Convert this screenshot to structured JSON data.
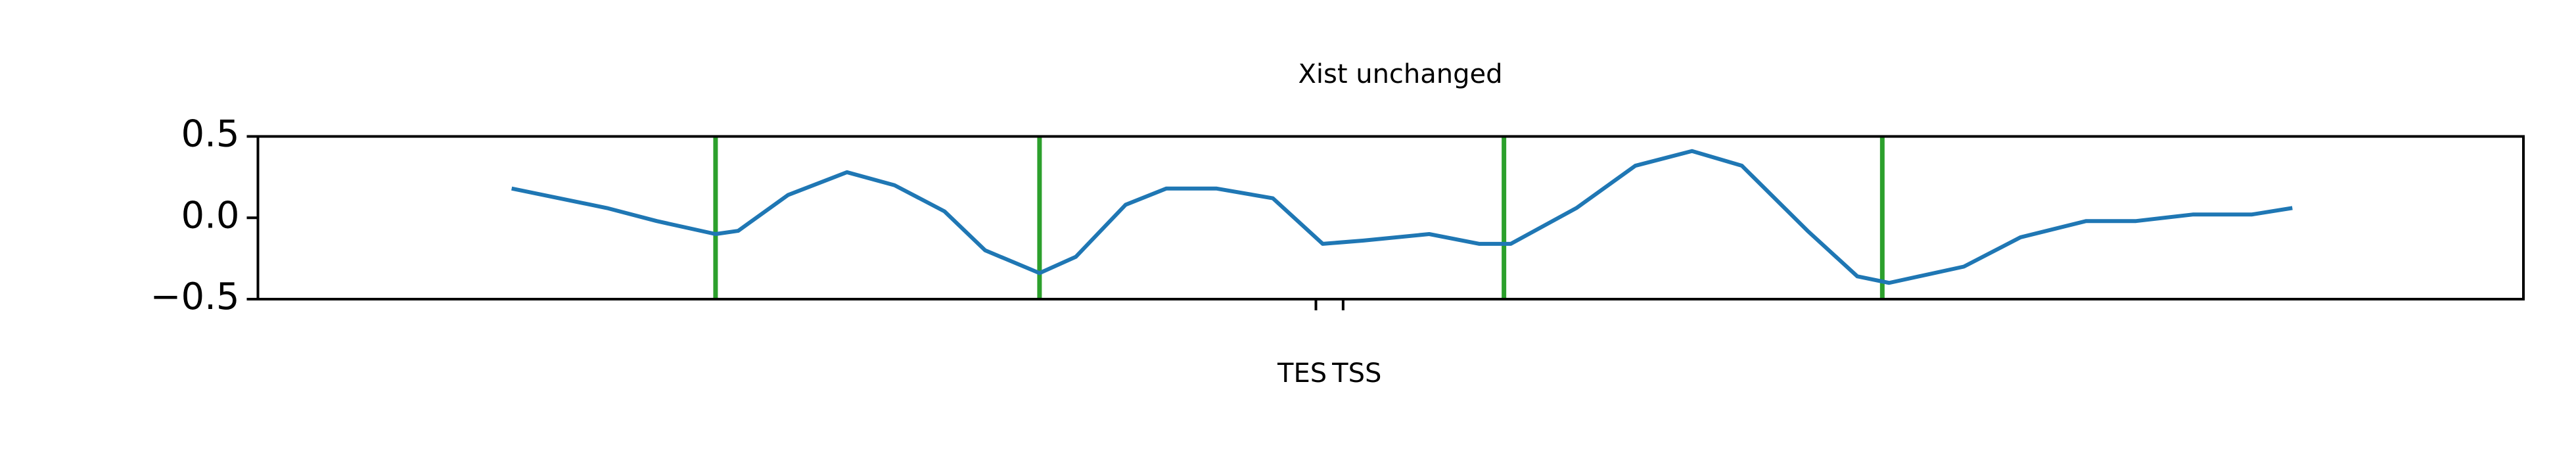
{
  "chart_data": {
    "type": "line",
    "title": "Xist unchanged",
    "x": [
      112,
      133,
      154,
      176,
      202,
      212,
      234,
      260,
      281,
      303,
      321,
      345,
      361,
      383,
      401,
      423,
      448,
      470,
      488,
      517,
      539,
      553,
      582,
      608,
      633,
      655,
      684,
      706,
      720,
      753,
      778,
      807,
      829,
      854,
      880,
      898
    ],
    "series": [
      {
        "color": "#1f77b4",
        "values": [
          0.18,
          0.12,
          0.06,
          -0.02,
          -0.1,
          -0.08,
          0.14,
          0.28,
          0.2,
          0.04,
          -0.2,
          -0.34,
          -0.24,
          0.08,
          0.18,
          0.18,
          0.12,
          -0.16,
          -0.14,
          -0.1,
          -0.16,
          -0.16,
          0.06,
          0.32,
          0.41,
          0.32,
          -0.08,
          -0.36,
          -0.4,
          -0.3,
          -0.12,
          -0.02,
          -0.02,
          0.02,
          0.02,
          0.06
        ]
      }
    ],
    "vlines": {
      "color": "#2ca02c",
      "x": [
        202,
        345,
        550,
        717
      ]
    },
    "xlim": [
      0,
      1000
    ],
    "xticks": [
      {
        "value": 467,
        "label": "TES"
      },
      {
        "value": 479,
        "label": "TSS"
      }
    ],
    "ylim": [
      -0.5,
      0.5
    ],
    "yticks": [
      {
        "value": -0.5,
        "label": "−0.5"
      },
      {
        "value": 0,
        "label": "0.0"
      },
      0.5
    ]
  }
}
